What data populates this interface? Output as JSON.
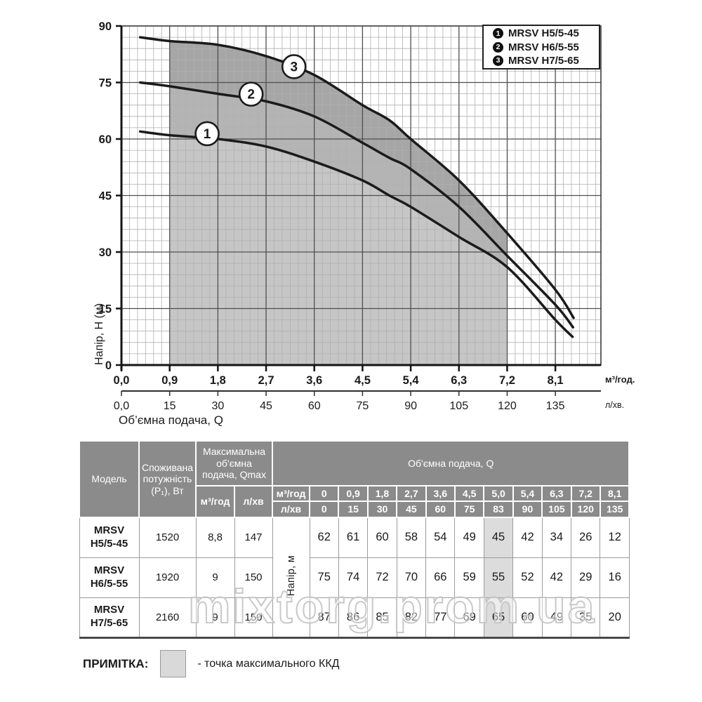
{
  "chart_data": {
    "type": "line",
    "title": "",
    "ylabel": "Напір, H (м)",
    "xlabel": "Об’ємна подача, Q",
    "x_unit_primary": "м³/год.",
    "x_unit_secondary": "л/хв.",
    "x_tick_step": 0.9,
    "x_tick_labels_m3god": [
      "0,0",
      "0,9",
      "1,8",
      "2,7",
      "3,6",
      "4,5",
      "5,4",
      "6,3",
      "7,2",
      "8,1"
    ],
    "x_tick_labels_lxv": [
      "0,0",
      "15",
      "30",
      "45",
      "60",
      "75",
      "90",
      "105",
      "120",
      "135"
    ],
    "y_tick_labels": [
      "0",
      "15",
      "30",
      "45",
      "60",
      "75",
      "90"
    ],
    "xlim": [
      0,
      8.95
    ],
    "ylim": [
      0,
      90
    ],
    "y_major_step": 15,
    "y_minor_step": 3,
    "x_minor_step": 0.15,
    "grid": "on",
    "legend_position": "top-right",
    "shaded_q_range": [
      0.9,
      7.2
    ],
    "band_fill_colors": [
      "#c6c6c6",
      "#b4b4b4",
      "#a6a6a6"
    ],
    "curve_color": "#1b1b1b",
    "legend": [
      {
        "num": "1",
        "label": "MRSV H5/5-45"
      },
      {
        "num": "2",
        "label": "MRSV H6/5-55"
      },
      {
        "num": "3",
        "label": "MRSV H7/5-65"
      }
    ],
    "series": [
      {
        "name": "MRSV H5/5-45",
        "badge": "1",
        "badge_at": {
          "q": 1.6,
          "h": 61.4
        },
        "q": [
          0.35,
          0.9,
          1.8,
          2.7,
          3.6,
          4.5,
          5.0,
          5.4,
          6.3,
          7.2,
          8.1,
          8.42
        ],
        "h": [
          62,
          61,
          60,
          58,
          54,
          49,
          45,
          42,
          34,
          26,
          12,
          7.5
        ]
      },
      {
        "name": "MRSV H6/5-55",
        "badge": "2",
        "badge_at": {
          "q": 2.42,
          "h": 71.9
        },
        "q": [
          0.35,
          0.9,
          1.8,
          2.7,
          3.6,
          4.5,
          5.0,
          5.4,
          6.3,
          7.2,
          8.1,
          8.43
        ],
        "h": [
          75,
          74,
          72,
          70,
          66,
          59,
          55,
          52,
          42,
          29,
          16,
          10
        ]
      },
      {
        "name": "MRSV H7/5-65",
        "badge": "3",
        "badge_at": {
          "q": 3.22,
          "h": 79.2
        },
        "q": [
          0.35,
          0.9,
          1.8,
          2.7,
          3.6,
          4.5,
          5.0,
          5.4,
          6.3,
          7.2,
          8.1,
          8.44
        ],
        "h": [
          87,
          86,
          85,
          82,
          77,
          69,
          65,
          60,
          49,
          35,
          20,
          12.5
        ]
      }
    ]
  },
  "table": {
    "headers": {
      "model": "Модель",
      "power": "Споживана потужність (P₁), Вт",
      "qmax": "Максимальна об'ємна подача, Qmax",
      "qmax_units": [
        "м³/год",
        "л/хв"
      ],
      "q": "Об'ємна подача, Q",
      "q_rows": [
        {
          "unit": "м³/год",
          "values": [
            "0",
            "0,9",
            "1,8",
            "2,7",
            "3,6",
            "4,5",
            "5,0",
            "5,4",
            "6,3",
            "7,2",
            "8,1"
          ]
        },
        {
          "unit": "л/хв",
          "values": [
            "0",
            "15",
            "30",
            "45",
            "60",
            "75",
            "83",
            "90",
            "105",
            "120",
            "135"
          ]
        }
      ],
      "head_label": "Напір, м"
    },
    "highlight_column": 6,
    "rows": [
      {
        "model": "MRSV H5/5-45",
        "power": "1520",
        "qmax_m3god": "8,8",
        "qmax_lxv": "147",
        "head_m": [
          "62",
          "61",
          "60",
          "58",
          "54",
          "49",
          "45",
          "42",
          "34",
          "26",
          "12"
        ]
      },
      {
        "model": "MRSV H6/5-55",
        "power": "1920",
        "qmax_m3god": "9",
        "qmax_lxv": "150",
        "head_m": [
          "75",
          "74",
          "72",
          "70",
          "66",
          "59",
          "55",
          "52",
          "42",
          "29",
          "16"
        ]
      },
      {
        "model": "MRSV H7/5-65",
        "power": "2160",
        "qmax_m3god": "9",
        "qmax_lxv": "150",
        "head_m": [
          "87",
          "86",
          "85",
          "82",
          "77",
          "69",
          "65",
          "60",
          "49",
          "35",
          "20"
        ]
      }
    ]
  },
  "note": {
    "label": "ПРИМІТКА:",
    "swatch_color": "#d9d9d9",
    "text": "- точка максимального ККД"
  },
  "watermark": "mixtorg.prom.ua"
}
